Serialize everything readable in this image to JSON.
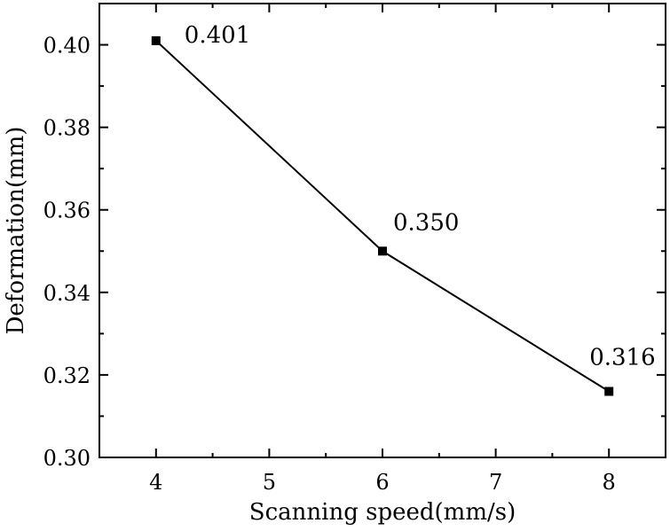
{
  "chart_data": {
    "type": "line",
    "title": "",
    "xlabel": "Scanning speed(mm/s)",
    "ylabel": "Deformation(mm)",
    "xlim": [
      3.5,
      8.5
    ],
    "ylim": [
      0.3,
      0.41
    ],
    "x_ticks": [
      4,
      5,
      6,
      7,
      8
    ],
    "y_ticks": [
      0.3,
      0.32,
      0.34,
      0.36,
      0.38,
      0.4
    ],
    "x_tick_labels": [
      "4",
      "5",
      "6",
      "7",
      "8"
    ],
    "y_tick_labels": [
      "0.30",
      "0.32",
      "0.34",
      "0.36",
      "0.38",
      "0.40"
    ],
    "grid": false,
    "series": [
      {
        "name": "Deformation",
        "x": [
          4,
          6,
          8
        ],
        "values": [
          0.401,
          0.35,
          0.316
        ],
        "labels": [
          "0.401",
          "0.350",
          "0.316"
        ],
        "color": "#000000",
        "marker": "square"
      }
    ]
  }
}
